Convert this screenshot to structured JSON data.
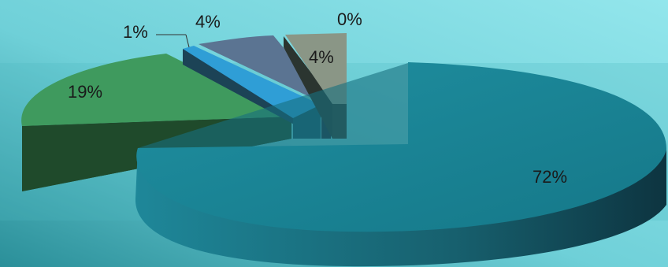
{
  "chart_data": {
    "type": "pie",
    "style": "3d-exploded",
    "slices": [
      {
        "label": "72%",
        "value": 72,
        "color": "#1b8496"
      },
      {
        "label": "19%",
        "value": 19,
        "color": "#3f9a5e"
      },
      {
        "label": "1%",
        "value": 1,
        "color": "#2f9ed6"
      },
      {
        "label": "4%",
        "value": 4,
        "color": "#5b7492"
      },
      {
        "label": "4%",
        "value": 4,
        "color": "#8a9686"
      },
      {
        "label": "0%",
        "value": 0,
        "color": "#8a9686"
      }
    ],
    "background": [
      "#1d7f8c",
      "#8fe3ea"
    ]
  }
}
